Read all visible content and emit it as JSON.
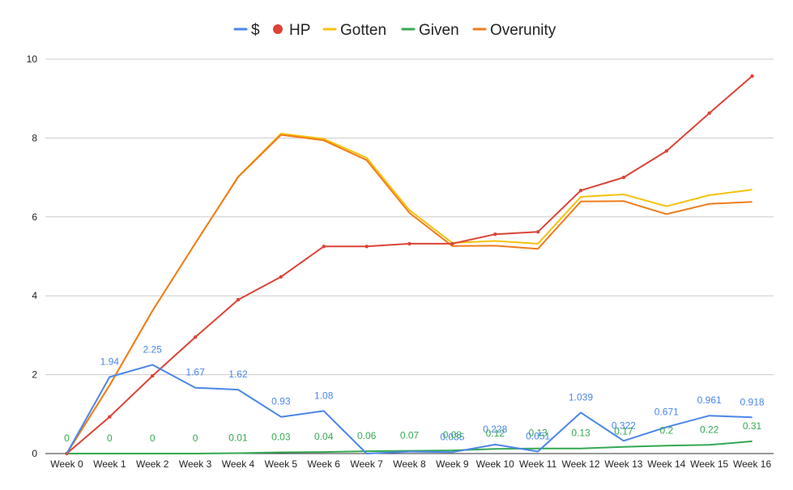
{
  "chart_data": {
    "type": "line",
    "title": "",
    "xlabel": "",
    "ylabel": "",
    "ylim": [
      0,
      10
    ],
    "yticks": [
      "0",
      "2",
      "4",
      "6",
      "8",
      "10"
    ],
    "grid": true,
    "legend_position": "top",
    "categories": [
      "Week 0",
      "Week 1",
      "Week 2",
      "Week 3",
      "Week 4",
      "Week 5",
      "Week 6",
      "Week 7",
      "Week 8",
      "Week 9",
      "Week 10",
      "Week 11",
      "Week 12",
      "Week 13",
      "Week 14",
      "Week 15",
      "Week 16"
    ],
    "series": [
      {
        "name": "$",
        "color": "#4a86e8",
        "markers": false,
        "values": [
          0,
          1.94,
          2.25,
          1.67,
          1.62,
          0.93,
          1.08,
          0.0,
          0.05,
          0.035,
          0.228,
          0.051,
          1.039,
          0.322,
          0.671,
          0.961,
          0.918
        ],
        "labels": [
          "",
          "1.94",
          "2.25",
          "1.67",
          "1.62",
          "0.93",
          "1.08",
          "",
          "",
          "0.035",
          "0.228",
          "0.051",
          "1.039",
          "0.322",
          "0.671",
          "0.961",
          "0.918"
        ]
      },
      {
        "name": "HP",
        "color": "#db4437",
        "markers": true,
        "values": [
          0,
          0.93,
          1.97,
          2.95,
          3.9,
          4.48,
          5.25,
          5.25,
          5.32,
          5.32,
          5.56,
          5.62,
          6.67,
          7.0,
          7.67,
          8.63,
          9.57
        ],
        "labels": []
      },
      {
        "name": "Gotten",
        "color": "#f4c20d",
        "markers": false,
        "values": [
          0,
          1.73,
          3.62,
          5.33,
          7.02,
          8.11,
          7.98,
          7.5,
          6.17,
          5.34,
          5.39,
          5.32,
          6.51,
          6.57,
          6.27,
          6.55,
          6.69
        ],
        "labels": []
      },
      {
        "name": "Given",
        "color": "#34a853",
        "markers": false,
        "values": [
          0,
          0,
          0,
          0,
          0.01,
          0.03,
          0.04,
          0.06,
          0.07,
          0.08,
          0.12,
          0.13,
          0.13,
          0.17,
          0.2,
          0.22,
          0.31
        ],
        "labels": [
          "0",
          "0",
          "0",
          "0",
          "0.01",
          "0.03",
          "0.04",
          "0.06",
          "0.07",
          "0.08",
          "0.12",
          "0.13",
          "0.13",
          "0.17",
          "0.2",
          "0.22",
          "0.31"
        ]
      },
      {
        "name": "Overunity",
        "color": "#f07c1b",
        "markers": false,
        "values": [
          0,
          1.73,
          3.62,
          5.33,
          7.01,
          8.08,
          7.94,
          7.44,
          6.1,
          5.26,
          5.27,
          5.19,
          6.39,
          6.4,
          6.07,
          6.33,
          6.38
        ],
        "labels": []
      }
    ]
  }
}
